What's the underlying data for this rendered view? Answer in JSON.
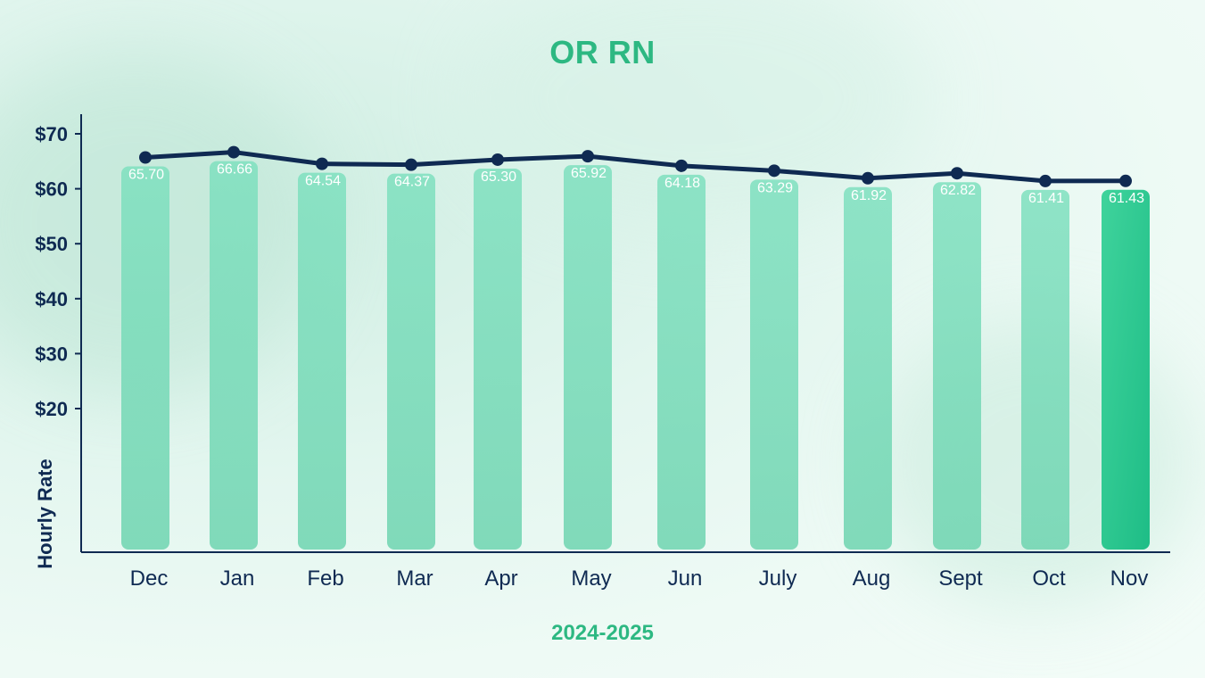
{
  "title": "OR RN",
  "chart_data": {
    "type": "bar",
    "title": "OR RN",
    "xlabel": "2024-2025",
    "ylabel": "Hourly Rate",
    "categories": [
      "Dec",
      "Jan",
      "Feb",
      "Mar",
      "Apr",
      "May",
      "Jun",
      "July",
      "Aug",
      "Sept",
      "Oct",
      "Nov"
    ],
    "values": [
      65.7,
      66.66,
      64.54,
      64.37,
      65.3,
      65.92,
      64.18,
      63.29,
      61.92,
      62.82,
      61.41,
      61.43
    ],
    "value_labels": [
      "65.70",
      "66.66",
      "64.54",
      "64.37",
      "65.30",
      "65.92",
      "64.18",
      "63.29",
      "61.92",
      "62.82",
      "61.41",
      "61.43"
    ],
    "overlay": "line",
    "y_ticks": [
      20,
      30,
      40,
      50,
      60,
      70
    ],
    "y_tick_labels": [
      "$20",
      "$30",
      "$40",
      "$50",
      "$60",
      "$70"
    ],
    "ylim": [
      0,
      70
    ],
    "grid": false,
    "highlight_category": "Nov",
    "colors": {
      "bar": "#7fe0bf",
      "bar_highlight": "#1ebd86",
      "line": "#0f2a52",
      "title": "#2db882",
      "axis": "#0f2a52"
    }
  }
}
